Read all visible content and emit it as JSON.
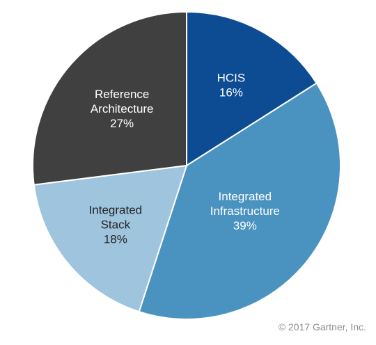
{
  "chart_data": {
    "type": "pie",
    "slices": [
      {
        "label_lines": [
          "HCIS"
        ],
        "percent_text": "16%",
        "value": 16,
        "color": "#0d4c93",
        "text_color": "#ffffff"
      },
      {
        "label_lines": [
          "Integrated",
          "Infrastructure"
        ],
        "percent_text": "39%",
        "value": 39,
        "color": "#4a93c0",
        "text_color": "#ffffff"
      },
      {
        "label_lines": [
          "Integrated",
          "Stack"
        ],
        "percent_text": "18%",
        "value": 18,
        "color": "#9fc4de",
        "text_color": "#222222"
      },
      {
        "label_lines": [
          "Reference",
          "Architecture"
        ],
        "percent_text": "27%",
        "value": 27,
        "color": "#404040",
        "text_color": "#ffffff"
      }
    ],
    "start_angle_deg": 0,
    "direction": "clockwise"
  },
  "footer": {
    "copyright": "© 2017 Gartner, Inc."
  }
}
